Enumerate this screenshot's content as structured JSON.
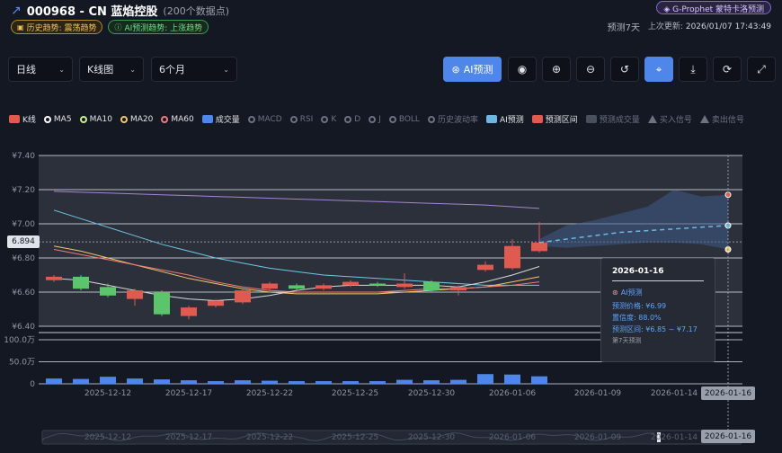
{
  "header": {
    "title": "000968 - CN 蓝焰控股",
    "subtitle": "(200个数据点)",
    "badge_history": "历史趋势: 震荡趋势",
    "badge_ai": "AI预测趋势: 上涨趋势",
    "prophet_label": "G-Prophet 蒙特卡洛预测",
    "predict_days": "预测7天",
    "update_label": "上次更新:",
    "update_time": "2026/01/07 17:43:49"
  },
  "toolbar": {
    "period_select": "日线",
    "chart_type_select": "K线图",
    "range_select": "6个月",
    "ai_predict_label": "AI预测",
    "icons": [
      "eye-icon",
      "zoom-in-icon",
      "zoom-out-icon",
      "undo-icon",
      "crosshair-icon",
      "download-icon",
      "refresh-icon",
      "fullscreen-icon"
    ]
  },
  "legend": [
    {
      "label": "K线",
      "color": "#e05a4f",
      "type": "swatch",
      "active": true
    },
    {
      "label": "MA5",
      "color": "#ffffff",
      "type": "dot",
      "active": true
    },
    {
      "label": "MA10",
      "color": "#c7f08a",
      "type": "dot",
      "active": true
    },
    {
      "label": "MA20",
      "color": "#f2c766",
      "type": "dot",
      "active": true
    },
    {
      "label": "MA60",
      "color": "#f07a7a",
      "type": "dot",
      "active": true
    },
    {
      "label": "成交量",
      "color": "#4f86ea",
      "type": "swatch",
      "active": true
    },
    {
      "label": "MACD",
      "color": "#6d7280",
      "type": "dot",
      "active": false
    },
    {
      "label": "RSI",
      "color": "#6d7280",
      "type": "dot",
      "active": false
    },
    {
      "label": "K",
      "color": "#6d7280",
      "type": "dot",
      "active": false
    },
    {
      "label": "D",
      "color": "#6d7280",
      "type": "dot",
      "active": false
    },
    {
      "label": "J",
      "color": "#6d7280",
      "type": "dot",
      "active": false
    },
    {
      "label": "BOLL",
      "color": "#6d7280",
      "type": "dot",
      "active": false
    },
    {
      "label": "历史波动率",
      "color": "#6d7280",
      "type": "dot",
      "active": false
    },
    {
      "label": "AI预测",
      "color": "#6fb7e0",
      "type": "swatch",
      "active": true
    },
    {
      "label": "预测区间",
      "color": "#e05a4f",
      "type": "swatch",
      "active": true
    },
    {
      "label": "预测成交量",
      "color": "#4a4f5c",
      "type": "swatch",
      "active": false
    },
    {
      "label": "买入信号",
      "color": "#6d7280",
      "type": "triangle",
      "active": false
    },
    {
      "label": "卖出信号",
      "color": "#6d7280",
      "type": "triangle",
      "active": false
    }
  ],
  "chart_data": {
    "type": "candlestick",
    "y_ticks": [
      "¥7.40",
      "¥7.20",
      "¥7.00",
      "¥6.80",
      "¥6.60",
      "¥6.40"
    ],
    "ylim": [
      6.4,
      7.4
    ],
    "volume_ticks": [
      "100.0万",
      "50.0万",
      "0"
    ],
    "volume_max": 100,
    "x_ticks": [
      "2025-12-12",
      "2025-12-17",
      "2025-12-22",
      "2025-12-25",
      "2025-12-30",
      "2026-01-06",
      "2026-01-09",
      "2026-01-14"
    ],
    "current_price_label": "6.894",
    "crosshair_date": "2026-01-16",
    "candles": [
      {
        "o": 6.67,
        "c": 6.69,
        "h": 6.7,
        "l": 6.66,
        "v": 12
      },
      {
        "o": 6.69,
        "c": 6.62,
        "h": 6.7,
        "l": 6.61,
        "v": 11
      },
      {
        "o": 6.63,
        "c": 6.58,
        "h": 6.65,
        "l": 6.57,
        "v": 16
      },
      {
        "o": 6.56,
        "c": 6.61,
        "h": 6.62,
        "l": 6.52,
        "v": 12
      },
      {
        "o": 6.6,
        "c": 6.47,
        "h": 6.61,
        "l": 6.46,
        "v": 10
      },
      {
        "o": 6.46,
        "c": 6.51,
        "h": 6.52,
        "l": 6.44,
        "v": 8
      },
      {
        "o": 6.52,
        "c": 6.55,
        "h": 6.56,
        "l": 6.51,
        "v": 6
      },
      {
        "o": 6.54,
        "c": 6.61,
        "h": 6.62,
        "l": 6.53,
        "v": 8
      },
      {
        "o": 6.62,
        "c": 6.65,
        "h": 6.66,
        "l": 6.61,
        "v": 7
      },
      {
        "o": 6.64,
        "c": 6.62,
        "h": 6.65,
        "l": 6.61,
        "v": 6
      },
      {
        "o": 6.62,
        "c": 6.64,
        "h": 6.65,
        "l": 6.61,
        "v": 6
      },
      {
        "o": 6.64,
        "c": 6.66,
        "h": 6.67,
        "l": 6.63,
        "v": 6
      },
      {
        "o": 6.65,
        "c": 6.64,
        "h": 6.66,
        "l": 6.63,
        "v": 6
      },
      {
        "o": 6.63,
        "c": 6.65,
        "h": 6.71,
        "l": 6.62,
        "v": 9
      },
      {
        "o": 6.66,
        "c": 6.61,
        "h": 6.67,
        "l": 6.6,
        "v": 8
      },
      {
        "o": 6.61,
        "c": 6.63,
        "h": 6.64,
        "l": 6.58,
        "v": 9
      },
      {
        "o": 6.73,
        "c": 6.76,
        "h": 6.78,
        "l": 6.72,
        "v": 22
      },
      {
        "o": 6.74,
        "c": 6.87,
        "h": 6.91,
        "l": 6.73,
        "v": 21
      },
      {
        "o": 6.84,
        "c": 6.89,
        "h": 7.01,
        "l": 6.83,
        "v": 17
      }
    ],
    "ma5": [
      6.68,
      6.67,
      6.64,
      6.61,
      6.58,
      6.56,
      6.55,
      6.56,
      6.58,
      6.61,
      6.63,
      6.64,
      6.64,
      6.64,
      6.64,
      6.63,
      6.66,
      6.7,
      6.75
    ],
    "ma10": [
      6.85,
      6.82,
      6.79,
      6.76,
      6.73,
      6.7,
      6.66,
      6.63,
      6.61,
      6.6,
      6.6,
      6.6,
      6.6,
      6.61,
      6.62,
      6.62,
      6.63,
      6.64,
      6.66
    ],
    "ma20": [
      6.87,
      6.84,
      6.8,
      6.76,
      6.72,
      6.68,
      6.65,
      6.62,
      6.6,
      6.59,
      6.59,
      6.59,
      6.59,
      6.6,
      6.61,
      6.62,
      6.63,
      6.66,
      6.69
    ],
    "ma60": [
      7.08,
      7.03,
      6.98,
      6.93,
      6.88,
      6.84,
      6.8,
      6.77,
      6.74,
      6.72,
      6.7,
      6.69,
      6.68,
      6.67,
      6.66,
      6.65,
      6.64,
      6.64,
      6.64
    ],
    "long_ma": [
      7.19,
      7.185,
      7.18,
      7.175,
      7.17,
      7.165,
      7.16,
      7.155,
      7.15,
      7.145,
      7.14,
      7.135,
      7.13,
      7.125,
      7.12,
      7.115,
      7.11,
      7.1,
      7.09
    ],
    "prediction": [
      6.89,
      6.91,
      6.93,
      6.95,
      6.96,
      6.97,
      6.98,
      6.99
    ],
    "pred_upper": [
      6.91,
      6.99,
      7.02,
      7.06,
      7.1,
      7.2,
      7.16,
      7.17
    ],
    "pred_lower": [
      6.87,
      6.86,
      6.87,
      6.88,
      6.89,
      6.89,
      6.88,
      6.85
    ]
  },
  "tooltip": {
    "date": "2026-01-16",
    "title": "AI预测",
    "price": "预测价格: ¥6.99",
    "confidence": "置信度: 88.0%",
    "range": "预测区间: ¥6.85 ~ ¥7.17",
    "footer": "第7天预测"
  }
}
